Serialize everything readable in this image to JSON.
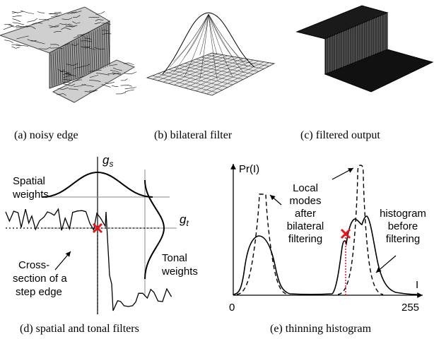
{
  "panels": {
    "a": {
      "caption": "(a)  noisy edge"
    },
    "b": {
      "caption": "(b)  bilateral filter"
    },
    "c": {
      "caption": "(c)  filtered output"
    },
    "d": {
      "caption": "(d)  spatial and tonal filters",
      "label_gs": "g",
      "label_gs_sub": "s",
      "label_gt": "g",
      "label_gt_sub": "t",
      "spatial_line1": "Spatial",
      "spatial_line2": "weights",
      "tonal_line1": "Tonal",
      "tonal_line2": "weights",
      "cross_line1": "Cross-",
      "cross_line2": "section of a",
      "cross_line3": "step edge"
    },
    "e": {
      "caption": "(e)  thinning histogram",
      "ylabel": "Pr(I)",
      "xlabel": "I",
      "x0": "0",
      "x255": "255",
      "modes_line1": "Local",
      "modes_line2": "modes",
      "modes_line3": "after",
      "modes_line4": "bilateral",
      "modes_line5": "filtering",
      "hist_line1": "histogram",
      "hist_line2": "before",
      "hist_line3": "filtering"
    }
  },
  "colors": {
    "marker": "#e8141c",
    "line": "#000000"
  }
}
